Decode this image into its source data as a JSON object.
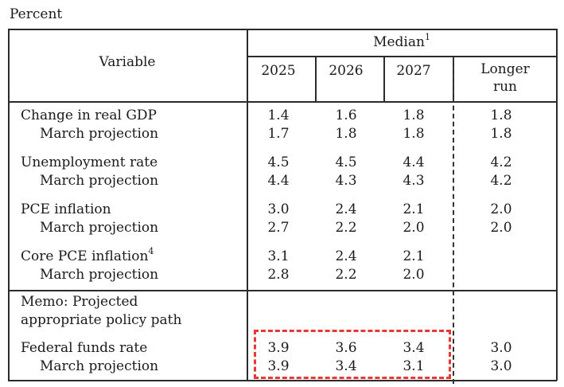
{
  "caption": "Percent",
  "header": {
    "variable_label": "Variable",
    "median_label": "Median",
    "median_footnote": "1",
    "years": [
      "2025",
      "2026",
      "2027"
    ],
    "longer_run_line1": "Longer",
    "longer_run_line2": "run"
  },
  "rows": [
    {
      "label": "Change in real GDP",
      "values": [
        "1.4",
        "1.6",
        "1.8",
        "1.8"
      ]
    },
    {
      "label": "March projection",
      "values": [
        "1.7",
        "1.8",
        "1.8",
        "1.8"
      ]
    },
    {
      "label": "Unemployment rate",
      "values": [
        "4.5",
        "4.5",
        "4.4",
        "4.2"
      ]
    },
    {
      "label": "March projection",
      "values": [
        "4.4",
        "4.3",
        "4.3",
        "4.2"
      ]
    },
    {
      "label": "PCE inflation",
      "values": [
        "3.0",
        "2.4",
        "2.1",
        "2.0"
      ]
    },
    {
      "label": "March projection",
      "values": [
        "2.7",
        "2.2",
        "2.0",
        "2.0"
      ]
    },
    {
      "label": "Core PCE inflation",
      "footnote": "4",
      "values": [
        "3.1",
        "2.4",
        "2.1",
        ""
      ]
    },
    {
      "label": "March projection",
      "values": [
        "2.8",
        "2.2",
        "2.0",
        ""
      ]
    }
  ],
  "memo": {
    "line1": "Memo: Projected",
    "line2": "appropriate policy path"
  },
  "memo_rows": [
    {
      "label": "Federal funds rate",
      "values": [
        "3.9",
        "3.6",
        "3.4",
        "3.0"
      ]
    },
    {
      "label": "March projection",
      "values": [
        "3.9",
        "3.4",
        "3.1",
        "3.0"
      ]
    }
  ],
  "colors": {
    "highlight": "#e53935",
    "rule": "#2b2b2b"
  }
}
